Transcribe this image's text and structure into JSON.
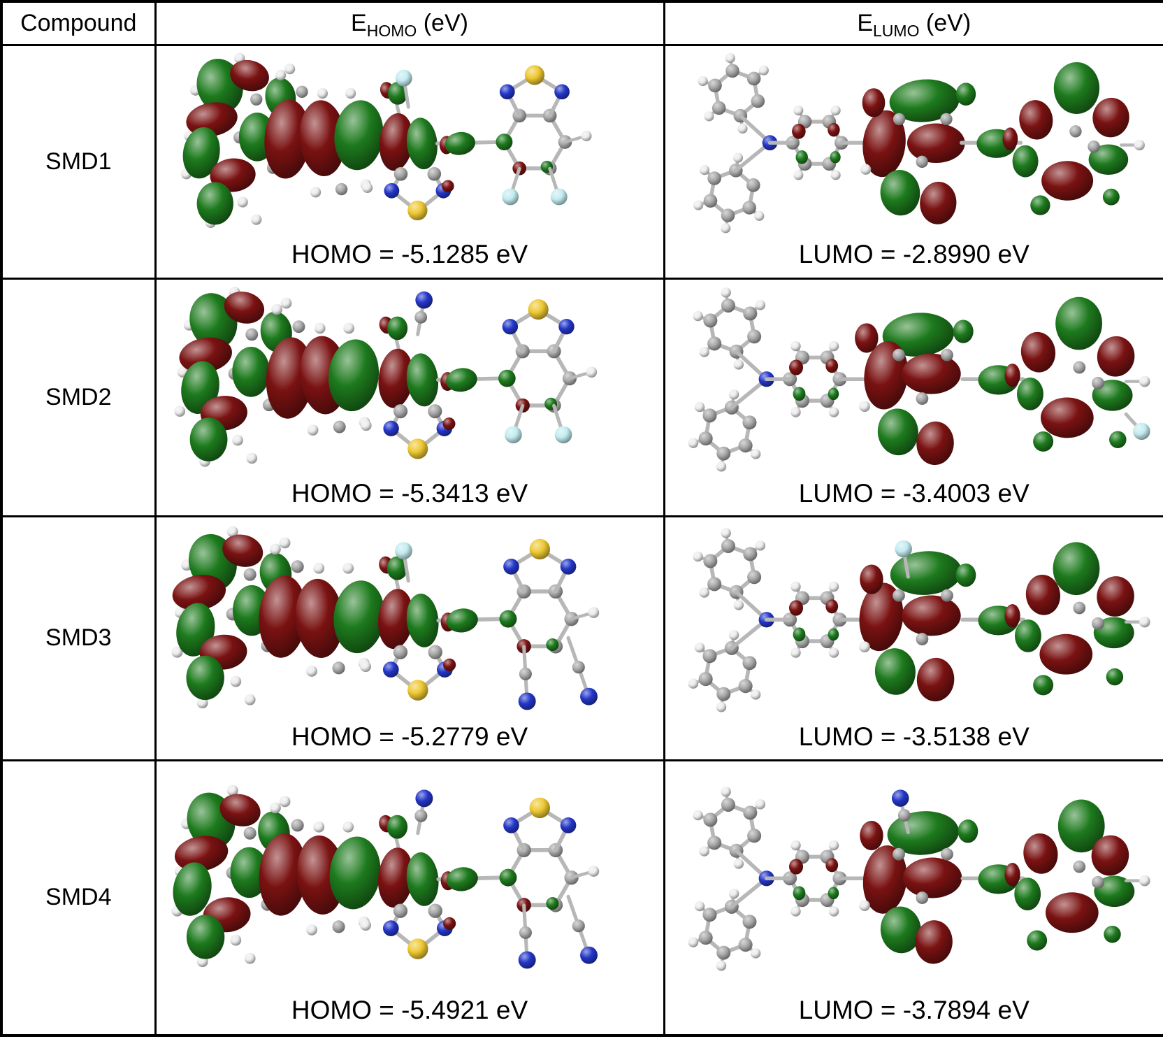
{
  "table": {
    "headers": {
      "compound": "Compound",
      "homo": {
        "base": "E",
        "sub": "HOMO",
        "rest": " (eV)"
      },
      "lumo": {
        "base": "E",
        "sub": "LUMO",
        "rest": " (eV)"
      }
    },
    "rows": [
      {
        "compound": "SMD1",
        "homo_label": "HOMO = -5.1285 eV",
        "lumo_label": "LUMO = -2.8990 eV"
      },
      {
        "compound": "SMD2",
        "homo_label": "HOMO = -5.3413 eV",
        "lumo_label": "LUMO = -3.4003 eV"
      },
      {
        "compound": "SMD3",
        "homo_label": "HOMO = -5.2779 eV",
        "lumo_label": "LUMO = -3.5138 eV"
      },
      {
        "compound": "SMD4",
        "homo_label": "HOMO = -5.4921 eV",
        "lumo_label": "LUMO = -3.7894 eV"
      }
    ],
    "colors": {
      "orbital_positive_green": "#1d7a1d",
      "orbital_negative_maroon": "#7a1212",
      "carbon_gray": "#a9a9a9",
      "hydrogen_white": "#ececec",
      "nitrogen_blue": "#2336c8",
      "sulfur_yellow": "#eec832",
      "fluorine_cyan": "#c3ecf0",
      "bond_gray": "#b7b7b7",
      "border_black": "#000000",
      "background_white": "#ffffff"
    }
  }
}
